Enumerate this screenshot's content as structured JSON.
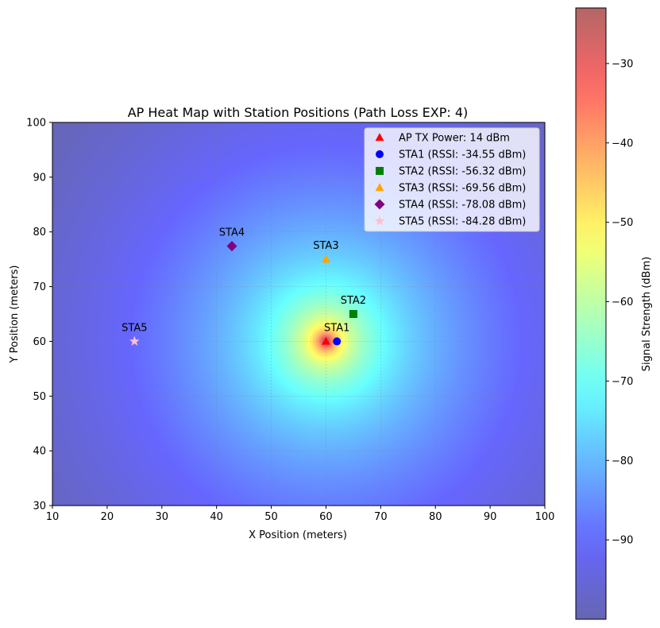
{
  "chart_data": {
    "type": "heatmap",
    "title": "AP Heat Map with Station Positions (Path Loss EXP: 4)",
    "xlabel": "X Position (meters)",
    "ylabel": "Y Position (meters)",
    "xlim": [
      10,
      100
    ],
    "ylim": [
      30,
      100
    ],
    "xticks": [
      10,
      20,
      30,
      40,
      50,
      60,
      70,
      80,
      90,
      100
    ],
    "yticks": [
      30,
      40,
      50,
      60,
      70,
      80,
      90,
      100
    ],
    "grid": true,
    "legend_position": "top-right",
    "heatmap": {
      "colormap": "jet",
      "vmin": -100,
      "vmax": -23,
      "center_x": 60,
      "center_y": 60,
      "colorbar_label": "Signal Strength (dBm)",
      "colorbar_ticks": [
        -90,
        -80,
        -70,
        -60,
        -50,
        -40,
        -30
      ],
      "colorbar_tick_labels": [
        "−90",
        "−80",
        "−70",
        "−60",
        "−50",
        "−40",
        "−30"
      ]
    },
    "points": [
      {
        "label": "",
        "legend": "AP TX Power: 14 dBm",
        "x": 60,
        "y": 60,
        "marker": "triangle",
        "color": "#ff0000"
      },
      {
        "label": "STA1",
        "legend": "STA1 (RSSI: -34.55 dBm)",
        "x": 62,
        "y": 60,
        "marker": "circle",
        "color": "#0000ff"
      },
      {
        "label": "STA2",
        "legend": "STA2 (RSSI: -56.32 dBm)",
        "x": 65,
        "y": 65,
        "marker": "square",
        "color": "#008000"
      },
      {
        "label": "STA3",
        "legend": "STA3 (RSSI: -69.56 dBm)",
        "x": 60,
        "y": 75,
        "marker": "triangle",
        "color": "#ffa500"
      },
      {
        "label": "STA4",
        "legend": "STA4 (RSSI: -78.08 dBm)",
        "x": 42.8,
        "y": 77.4,
        "marker": "diamond",
        "color": "#800080"
      },
      {
        "label": "STA5",
        "legend": "STA5 (RSSI: -84.28 dBm)",
        "x": 25,
        "y": 60,
        "marker": "star",
        "color": "#ffc0cb"
      }
    ]
  }
}
